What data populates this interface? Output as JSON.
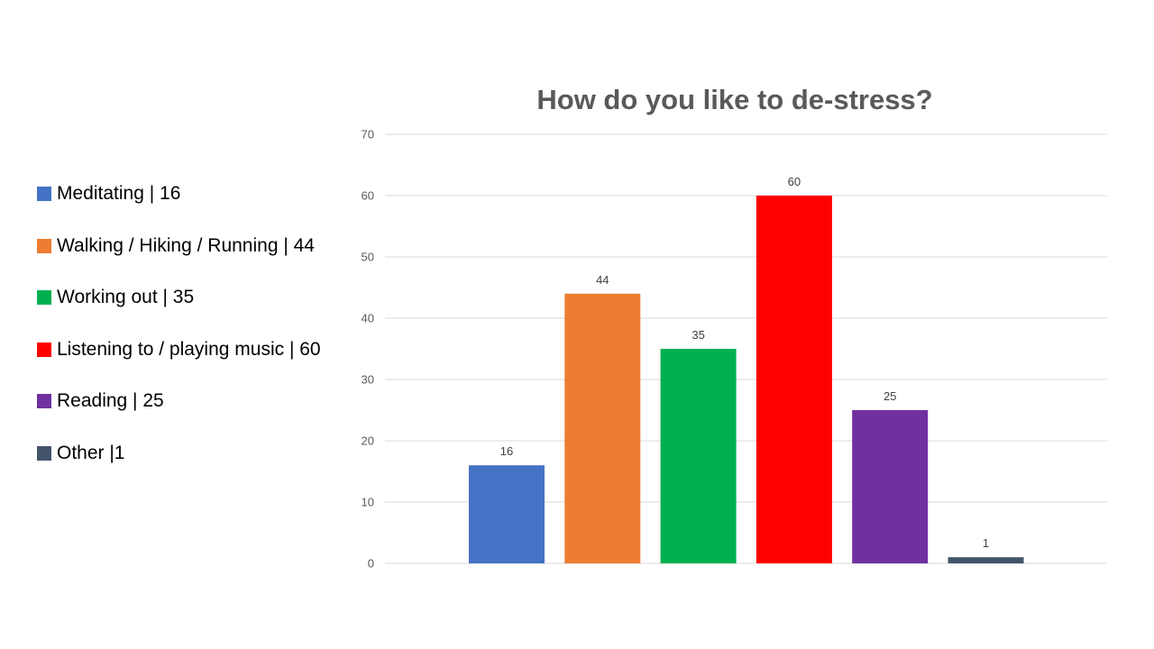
{
  "legend": {
    "items": [
      {
        "label": "Meditating | 16",
        "color": "#4472C4"
      },
      {
        "label": "Walking / Hiking / Running | 44",
        "color": "#ED7D31"
      },
      {
        "label": "Working out | 35",
        "color": "#00B050"
      },
      {
        "label": "Listening to / playing music | 60",
        "color": "#FF0000"
      },
      {
        "label": "Reading | 25",
        "color": "#7030A0"
      },
      {
        "label": "Other |1",
        "color": "#44546A"
      }
    ]
  },
  "chart_data": {
    "type": "bar",
    "title": "How do you like to de-stress?",
    "xlabel": "",
    "ylabel": "",
    "ylim": [
      0,
      70
    ],
    "yticks": [
      0,
      10,
      20,
      30,
      40,
      50,
      60,
      70
    ],
    "grid": true,
    "legend_placement": "left",
    "values": [
      16,
      44,
      35,
      60,
      25,
      1
    ],
    "colors": [
      "#4472C4",
      "#ED7D31",
      "#00B050",
      "#FF0000",
      "#7030A0",
      "#44546A"
    ]
  }
}
